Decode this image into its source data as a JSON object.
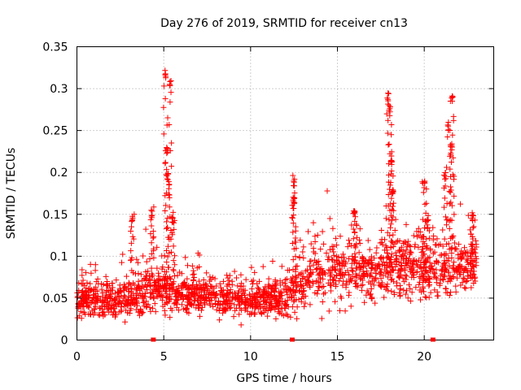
{
  "chart_data": {
    "type": "scatter",
    "title": "Day 276 of 2019, SRMTID for receiver cn13",
    "xlabel": "GPS time / hours",
    "ylabel": "SRMTID / TECUs",
    "xlim": [
      0,
      24
    ],
    "ylim": [
      0,
      0.35
    ],
    "xticks": [
      0,
      5,
      10,
      15,
      20
    ],
    "xtick_labels": [
      "0",
      "5",
      "10",
      "15",
      "20"
    ],
    "yticks": [
      0,
      0.05,
      0.1,
      0.15,
      0.2,
      0.25,
      0.3,
      0.35
    ],
    "ytick_labels": [
      "0",
      "0.05",
      "0.1",
      "0.15",
      "0.2",
      "0.25",
      "0.3",
      "0.35"
    ],
    "grid": true,
    "marker": "plus",
    "color": "#ff0000",
    "series_description": "SRMTID samples, approx. 2500 points between 0 and 23 h",
    "envelope": {
      "x": [
        0,
        1,
        2,
        3,
        4,
        4.8,
        5.2,
        5.5,
        6,
        7,
        8,
        9,
        10,
        11,
        12,
        12.5,
        13,
        14,
        15,
        16,
        17,
        17.5,
        18,
        18.5,
        19,
        20,
        21,
        21.5,
        22,
        23
      ],
      "baseline": [
        0.045,
        0.05,
        0.05,
        0.05,
        0.06,
        0.06,
        0.06,
        0.06,
        0.055,
        0.055,
        0.052,
        0.05,
        0.045,
        0.048,
        0.05,
        0.06,
        0.07,
        0.08,
        0.085,
        0.085,
        0.08,
        0.085,
        0.09,
        0.085,
        0.085,
        0.085,
        0.08,
        0.085,
        0.09,
        0.09
      ],
      "spread": [
        0.015,
        0.018,
        0.018,
        0.02,
        0.025,
        0.02,
        0.02,
        0.02,
        0.018,
        0.018,
        0.016,
        0.016,
        0.015,
        0.016,
        0.018,
        0.025,
        0.025,
        0.03,
        0.03,
        0.03,
        0.028,
        0.03,
        0.03,
        0.03,
        0.03,
        0.03,
        0.03,
        0.03,
        0.028,
        0.025
      ]
    },
    "peaks": [
      {
        "x": 3.2,
        "y": 0.148
      },
      {
        "x": 4.3,
        "y": 0.155
      },
      {
        "x": 5.1,
        "y": 0.318
      },
      {
        "x": 5.35,
        "y": 0.31
      },
      {
        "x": 5.2,
        "y": 0.23
      },
      {
        "x": 5.25,
        "y": 0.2
      },
      {
        "x": 5.5,
        "y": 0.15
      },
      {
        "x": 12.5,
        "y": 0.193
      },
      {
        "x": 12.5,
        "y": 0.17
      },
      {
        "x": 16.0,
        "y": 0.155
      },
      {
        "x": 17.9,
        "y": 0.295
      },
      {
        "x": 18.0,
        "y": 0.28
      },
      {
        "x": 18.1,
        "y": 0.22
      },
      {
        "x": 18.2,
        "y": 0.18
      },
      {
        "x": 20.0,
        "y": 0.19
      },
      {
        "x": 20.2,
        "y": 0.145
      },
      {
        "x": 21.2,
        "y": 0.2
      },
      {
        "x": 21.4,
        "y": 0.26
      },
      {
        "x": 21.6,
        "y": 0.293
      },
      {
        "x": 21.6,
        "y": 0.235
      },
      {
        "x": 22.8,
        "y": 0.15
      }
    ],
    "bottom_markers_x": [
      4.4,
      12.4,
      20.5
    ]
  }
}
